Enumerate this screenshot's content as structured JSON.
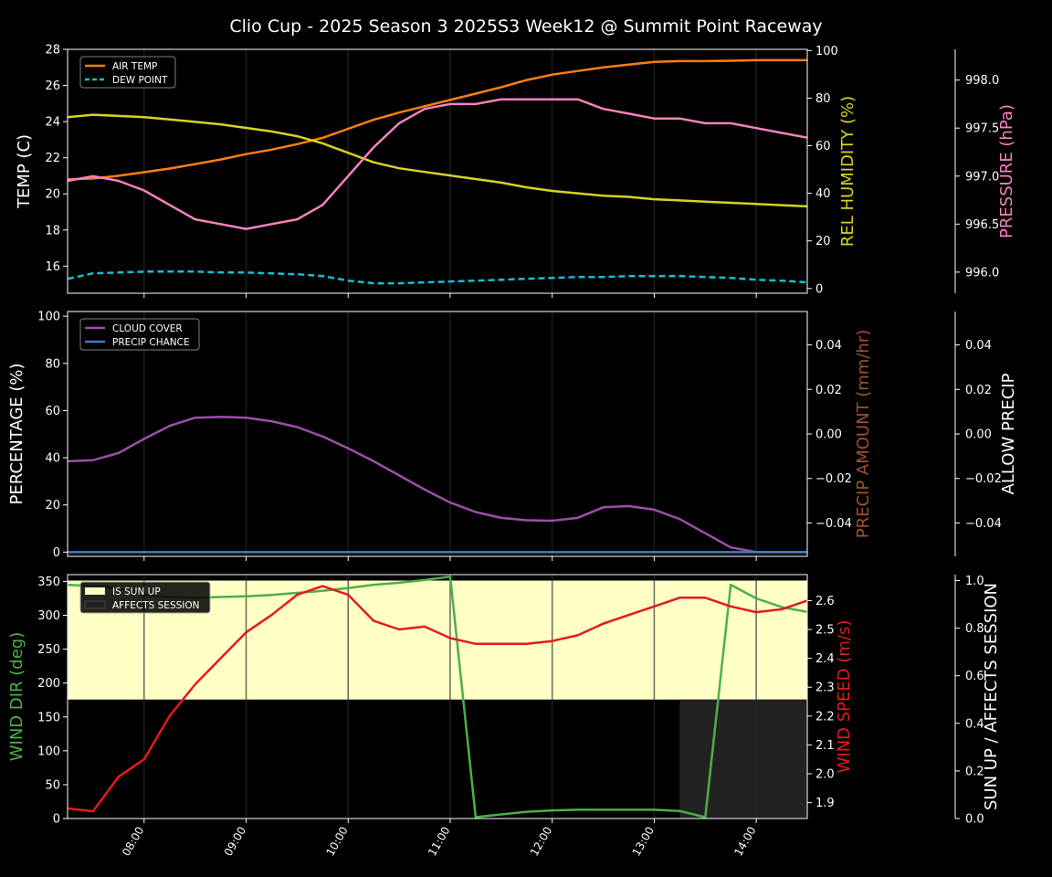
{
  "title": "Clio Cup - 2025 Season 3 2025S3 Week12 @ Summit Point Raceway",
  "colors": {
    "air_temp": "#ff7f0e",
    "dew_point": "#17becf",
    "humidity": "#d4d422",
    "pressure": "#f781bf",
    "cloud": "#9b4fa8",
    "precip_chance": "#3e7fc1",
    "precip_amount": "#a0522d",
    "wind_dir": "#4daf4a",
    "wind_speed": "#e41a1c",
    "sun_up": "#ffffc6",
    "affects_session": "#222222"
  },
  "chart_data": [
    {
      "type": "line",
      "x": [
        "07:15",
        "07:30",
        "07:45",
        "08:00",
        "08:15",
        "08:30",
        "08:45",
        "09:00",
        "09:15",
        "09:30",
        "09:45",
        "10:00",
        "10:15",
        "10:30",
        "10:45",
        "11:00",
        "11:15",
        "11:30",
        "11:45",
        "12:00",
        "12:15",
        "12:30",
        "12:45",
        "13:00",
        "13:15",
        "13:30",
        "13:45",
        "14:00",
        "14:15",
        "14:30"
      ],
      "x_ticks": [
        "08:00",
        "09:00",
        "10:00",
        "11:00",
        "12:00",
        "13:00",
        "14:00"
      ],
      "left_axis": {
        "label": "TEMP (C)",
        "ticks": [
          "16",
          "18",
          "20",
          "22",
          "24",
          "26",
          "28"
        ],
        "range": [
          14.5,
          28
        ]
      },
      "right_axis": {
        "label": "REL HUMIDITY (%)",
        "ticks": [
          "0",
          "20",
          "40",
          "60",
          "80",
          "100"
        ],
        "range": [
          -2,
          100.5
        ]
      },
      "far_axis": {
        "label": "PRESSURE (hPa)",
        "ticks": [
          "996.0",
          "996.5",
          "997.0",
          "997.5",
          "998.0"
        ],
        "range": [
          995.78,
          998.32
        ]
      },
      "legend": [
        "AIR TEMP",
        "DEW POINT"
      ],
      "series": [
        {
          "name": "AIR TEMP",
          "axis": "left",
          "values": [
            20.8,
            20.85,
            21.0,
            21.2,
            21.4,
            21.65,
            21.9,
            22.2,
            22.45,
            22.75,
            23.1,
            23.6,
            24.1,
            24.5,
            24.85,
            25.2,
            25.55,
            25.9,
            26.3,
            26.6,
            26.8,
            27.0,
            27.15,
            27.3,
            27.35,
            27.35,
            27.37,
            27.4,
            27.4,
            27.4
          ]
        },
        {
          "name": "DEW POINT",
          "axis": "left",
          "values": [
            15.3,
            15.6,
            15.65,
            15.7,
            15.7,
            15.7,
            15.65,
            15.65,
            15.6,
            15.55,
            15.45,
            15.2,
            15.05,
            15.05,
            15.1,
            15.15,
            15.2,
            15.25,
            15.3,
            15.35,
            15.4,
            15.4,
            15.45,
            15.45,
            15.45,
            15.4,
            15.35,
            15.25,
            15.2,
            15.1
          ]
        },
        {
          "name": "REL HUMIDITY",
          "axis": "right",
          "values": [
            72,
            73,
            72.5,
            72,
            71,
            70,
            69,
            67.5,
            66,
            64,
            61,
            57,
            53,
            50.5,
            49,
            47.5,
            46,
            44.5,
            42.5,
            41,
            40,
            39,
            38.5,
            37.5,
            37,
            36.5,
            36,
            35.5,
            35,
            34.5
          ]
        },
        {
          "name": "PRESSURE",
          "axis": "far",
          "values": [
            996.95,
            997.0,
            996.95,
            996.85,
            996.7,
            996.55,
            996.5,
            996.45,
            996.5,
            996.55,
            996.7,
            997.0,
            997.3,
            997.55,
            997.7,
            997.75,
            997.75,
            997.8,
            997.8,
            997.8,
            997.8,
            997.7,
            997.65,
            997.6,
            997.6,
            997.55,
            997.55,
            997.5,
            997.45,
            997.4
          ]
        }
      ]
    },
    {
      "type": "line",
      "x": [
        "07:15",
        "07:30",
        "07:45",
        "08:00",
        "08:15",
        "08:30",
        "08:45",
        "09:00",
        "09:15",
        "09:30",
        "09:45",
        "10:00",
        "10:15",
        "10:30",
        "10:45",
        "11:00",
        "11:15",
        "11:30",
        "11:45",
        "12:00",
        "12:15",
        "12:30",
        "12:45",
        "13:00",
        "13:15",
        "13:30",
        "13:45",
        "14:00",
        "14:15",
        "14:30"
      ],
      "x_ticks": [
        "08:00",
        "09:00",
        "10:00",
        "11:00",
        "12:00",
        "13:00",
        "14:00"
      ],
      "left_axis": {
        "label": "PERCENTAGE (%)",
        "ticks": [
          "0",
          "20",
          "40",
          "60",
          "80",
          "100"
        ],
        "range": [
          -1.8,
          102
        ]
      },
      "right_axis": {
        "label": "PRECIP AMOUNT (mm/hr)",
        "ticks": [
          "0.04",
          "0.02",
          "0.00",
          "−0.02",
          "−0.04"
        ],
        "range": [
          -0.055,
          0.055
        ]
      },
      "far_axis": {
        "label": "ALLOW PRECIP",
        "ticks": [
          "0.04",
          "0.02",
          "0.00",
          "−0.02",
          "−0.04"
        ],
        "range": [
          -0.055,
          0.055
        ]
      },
      "legend": [
        "CLOUD COVER",
        "PRECIP CHANCE"
      ],
      "series": [
        {
          "name": "CLOUD COVER",
          "axis": "left",
          "values": [
            38.5,
            39,
            42,
            48,
            53.5,
            57,
            57.3,
            57,
            55.5,
            53,
            49,
            44,
            38.5,
            32.5,
            26.5,
            21,
            17,
            14.5,
            13.5,
            13.3,
            14.5,
            19,
            19.5,
            18,
            14,
            8,
            2,
            0,
            0,
            0
          ]
        },
        {
          "name": "PRECIP CHANCE",
          "axis": "left",
          "values": [
            0,
            0,
            0,
            0,
            0,
            0,
            0,
            0,
            0,
            0,
            0,
            0,
            0,
            0,
            0,
            0,
            0,
            0,
            0,
            0,
            0,
            0,
            0,
            0,
            0,
            0,
            0,
            0,
            0,
            0
          ]
        }
      ]
    },
    {
      "type": "line",
      "x": [
        "07:15",
        "07:30",
        "07:45",
        "08:00",
        "08:15",
        "08:30",
        "08:45",
        "09:00",
        "09:15",
        "09:30",
        "09:45",
        "10:00",
        "10:15",
        "10:30",
        "10:45",
        "11:00",
        "11:15",
        "11:30",
        "11:45",
        "12:00",
        "12:15",
        "12:30",
        "12:45",
        "13:00",
        "13:15",
        "13:30",
        "13:45",
        "14:00",
        "14:15",
        "14:30"
      ],
      "x_ticks": [
        "08:00",
        "09:00",
        "10:00",
        "11:00",
        "12:00",
        "13:00",
        "14:00"
      ],
      "left_axis": {
        "label": "WIND DIR (deg)",
        "ticks": [
          "0",
          "50",
          "100",
          "150",
          "200",
          "250",
          "300",
          "350"
        ],
        "range": [
          0,
          360
        ]
      },
      "right_axis": {
        "label": "WIND SPEED (m/s)",
        "ticks": [
          "1.9",
          "2.0",
          "2.1",
          "2.2",
          "2.3",
          "2.4",
          "2.5",
          "2.6"
        ],
        "range": [
          1.845,
          2.69
        ]
      },
      "far_axis": {
        "label": "SUN UP / AFFECTS SESSION",
        "ticks": [
          "0.0",
          "0.2",
          "0.4",
          "0.6",
          "0.8",
          "1.0"
        ],
        "range": [
          0,
          1.025
        ]
      },
      "legend": [
        "IS SUN UP",
        "AFFECTS SESSION"
      ],
      "bands": [
        {
          "name": "IS SUN UP",
          "from": "07:15",
          "to": "14:30",
          "y_range": [
            0.5,
            1.0
          ]
        },
        {
          "name": "AFFECTS SESSION",
          "from": "13:15",
          "to": "14:30",
          "y_range": [
            0,
            0.5
          ]
        }
      ],
      "series": [
        {
          "name": "WIND DIR",
          "axis": "left",
          "values": [
            345,
            343,
            340,
            330,
            327,
            326,
            327,
            328,
            330,
            333,
            336,
            340,
            345,
            348,
            352,
            357,
            2,
            6,
            10,
            12,
            13,
            13,
            13,
            13,
            11,
            2,
            345,
            325,
            312,
            305
          ]
        },
        {
          "name": "WIND SPEED",
          "axis": "right",
          "values": [
            1.88,
            1.87,
            1.99,
            2.05,
            2.2,
            2.31,
            2.4,
            2.49,
            2.55,
            2.62,
            2.65,
            2.62,
            2.53,
            2.5,
            2.51,
            2.47,
            2.45,
            2.45,
            2.45,
            2.46,
            2.48,
            2.52,
            2.55,
            2.58,
            2.61,
            2.61,
            2.58,
            2.56,
            2.57,
            2.6
          ]
        }
      ]
    }
  ]
}
